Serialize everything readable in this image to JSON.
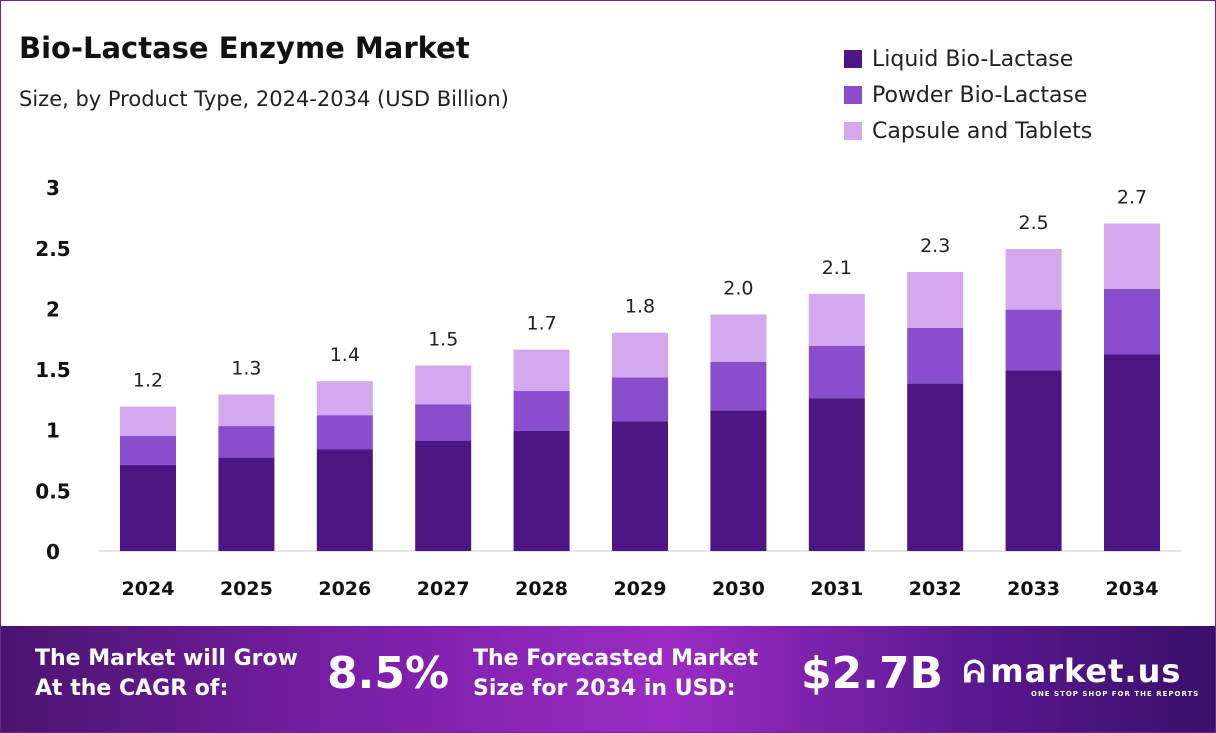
{
  "title": "Bio-Lactase Enzyme Market",
  "subtitle": "Size, by Product Type, 2024-2034 (USD Billion)",
  "colors": {
    "liquid": "#4e1585",
    "powder": "#8a4dcc",
    "capsule": "#d3a8ec"
  },
  "chart_data": {
    "type": "bar",
    "stacked": true,
    "categories": [
      "2024",
      "2025",
      "2026",
      "2027",
      "2028",
      "2029",
      "2030",
      "2031",
      "2032",
      "2033",
      "2034"
    ],
    "series": [
      {
        "name": "Liquid Bio-Lactase",
        "values": [
          0.71,
          0.77,
          0.84,
          0.91,
          0.99,
          1.07,
          1.16,
          1.26,
          1.38,
          1.49,
          1.62
        ]
      },
      {
        "name": "Powder Bio-Lactase",
        "values": [
          0.24,
          0.26,
          0.28,
          0.3,
          0.33,
          0.36,
          0.4,
          0.43,
          0.46,
          0.5,
          0.54
        ]
      },
      {
        "name": "Capsule and Tablets",
        "values": [
          0.24,
          0.26,
          0.28,
          0.32,
          0.34,
          0.37,
          0.39,
          0.43,
          0.46,
          0.5,
          0.54
        ]
      }
    ],
    "totals": [
      "1.2",
      "1.3",
      "1.4",
      "1.5",
      "1.7",
      "1.8",
      "2.0",
      "2.1",
      "2.3",
      "2.5",
      "2.7"
    ],
    "yticks": [
      "0",
      "0.5",
      "1",
      "1.5",
      "2",
      "2.5",
      "3"
    ],
    "ylim": [
      0,
      3
    ],
    "grid": false,
    "legend": "top-right"
  },
  "footer": {
    "cagr_label_1": "The Market will Grow",
    "cagr_label_2": "At the CAGR of:",
    "cagr_value": "8.5%",
    "forecast_label_1": "The Forecasted Market",
    "forecast_label_2": "Size for 2034 in USD:",
    "forecast_value": "$2.7B",
    "logo_text": "market.us",
    "logo_tagline": "ONE STOP SHOP FOR THE REPORTS"
  }
}
